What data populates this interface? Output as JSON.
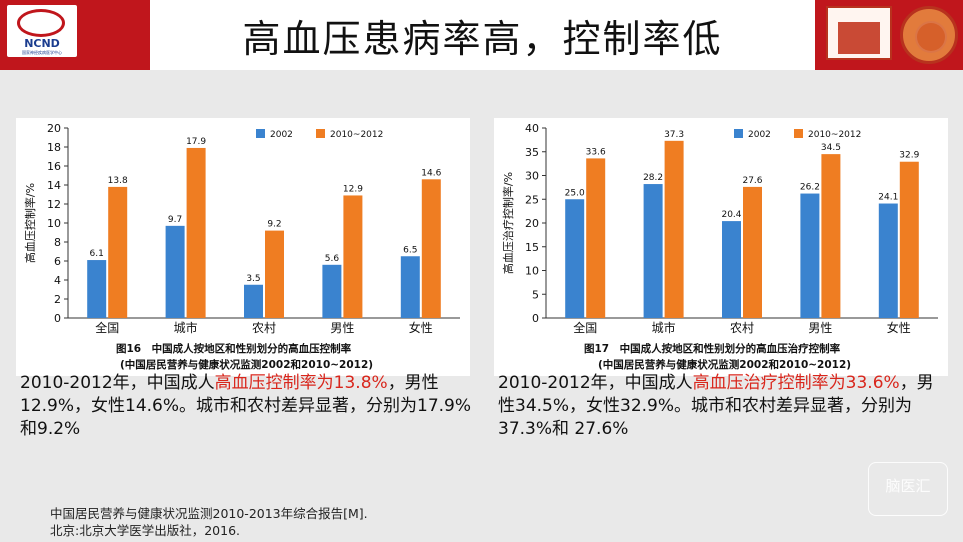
{
  "header": {
    "title": "高血压患病率高，控制率低",
    "logo_text": "NCND",
    "logo_subtext": "国家神经疾病医学中心"
  },
  "watermark": "脑医汇",
  "colors": {
    "series_2002": "#3a83cf",
    "series_2010": "#ef7d22",
    "header_red": "#c0161c",
    "highlight": "#d9261c"
  },
  "left_caption": {
    "p1": "2010-2012年，中国成人",
    "red": "高血压控制率为13.8%",
    "p2": "，男性12.9%，女性14.6%。城市和农村差异显著，分别为17.9%和9.2%"
  },
  "right_caption": {
    "p1": "2010-2012年，中国成人",
    "red": "高血压治疗控制率为33.6%",
    "p2": "，男性34.5%，女性32.9%。城市和农村差异显著，分别为 37.3%和 27.6%"
  },
  "reference": {
    "line1": "中国居民营养与健康状况监测2010-2013年综合报告[M].",
    "line2": "北京:北京大学医学出版社，2016."
  },
  "chart_data": [
    {
      "type": "bar",
      "categories": [
        "全国",
        "城市",
        "农村",
        "男性",
        "女性"
      ],
      "series": [
        {
          "name": "2002",
          "values": [
            6.1,
            9.7,
            3.5,
            5.6,
            6.5
          ]
        },
        {
          "name": "2010~2012",
          "values": [
            13.8,
            17.9,
            9.2,
            12.9,
            14.6
          ]
        }
      ],
      "ylabel": "高血压控制率/%",
      "ylim": [
        0,
        20
      ],
      "yticks": [
        0,
        2,
        4,
        6,
        8,
        10,
        12,
        14,
        16,
        18,
        20
      ],
      "caption1": "图16　中国成人按地区和性别划分的高血压控制率",
      "caption2": "(中国居民营养与健康状况监测2002和2010~2012)",
      "legend": "top"
    },
    {
      "type": "bar",
      "categories": [
        "全国",
        "城市",
        "农村",
        "男性",
        "女性"
      ],
      "series": [
        {
          "name": "2002",
          "values": [
            25.0,
            28.2,
            20.4,
            26.2,
            24.1
          ]
        },
        {
          "name": "2010~2012",
          "values": [
            33.6,
            37.3,
            27.6,
            34.5,
            32.9
          ]
        }
      ],
      "ylabel": "高血压治疗控制率/%",
      "ylim": [
        0,
        40
      ],
      "yticks": [
        0,
        5,
        10,
        15,
        20,
        25,
        30,
        35,
        40
      ],
      "caption1": "图17　中国成人按地区和性别划分的高血压治疗控制率",
      "caption2": "(中国居民营养与健康状况监测2002和2010~2012)",
      "legend": "top"
    }
  ]
}
